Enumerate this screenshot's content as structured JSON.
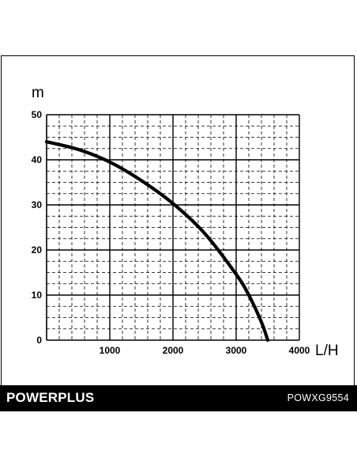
{
  "colors": {
    "ink": "#000000",
    "background": "#ffffff"
  },
  "footer": {
    "brand": "POWERPLUS",
    "model": "POWXG9554"
  },
  "chart_data": {
    "type": "line",
    "title": "",
    "xlabel": "L/H",
    "ylabel": "m",
    "xlim": [
      0,
      4000
    ],
    "ylim": [
      0,
      50
    ],
    "xticks": [
      1000,
      2000,
      3000,
      4000
    ],
    "yticks": [
      0,
      10,
      20,
      30,
      40,
      50
    ],
    "x_tick_labels": [
      "1000",
      "2000",
      "3000",
      "4000"
    ],
    "y_tick_labels": [
      "0",
      "10",
      "20",
      "30",
      "40",
      "50"
    ],
    "grid": true,
    "series": [
      {
        "x": [
          0,
          500,
          1000,
          1500,
          2000,
          2500,
          3000,
          3200,
          3400,
          3500
        ],
        "y": [
          44,
          42.3,
          39.5,
          35.4,
          30.3,
          23.7,
          14.6,
          10,
          4,
          0
        ]
      }
    ]
  }
}
